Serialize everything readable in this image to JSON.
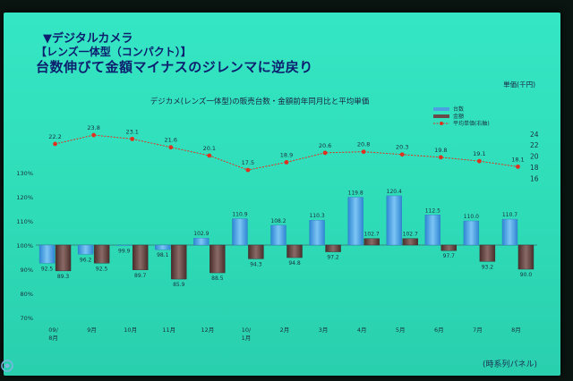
{
  "slide": {
    "heading": "▼デジタルカメラ",
    "subheading": "【レンズ一体型（コンパクト）】",
    "headline": "台数伸びて金額マイナスのジレンマに逆戻り",
    "footnote": "(時系列パネル)"
  },
  "chart_data": {
    "type": "bar+line",
    "title": "デジカメ(レンズ一体型)の販売台数・金額前年同月比と平均単価",
    "right_axis_unit": "単価(千円)",
    "categories": [
      "09/8月",
      "9月",
      "10月",
      "11月",
      "12月",
      "10/1月",
      "2月",
      "3月",
      "4月",
      "5月",
      "6月",
      "7月",
      "8月"
    ],
    "category_lines": [
      [
        "09/",
        "8月"
      ],
      [
        "9月"
      ],
      [
        "10月"
      ],
      [
        "11月"
      ],
      [
        "12月"
      ],
      [
        "10/",
        "1月"
      ],
      [
        "2月"
      ],
      [
        "3月"
      ],
      [
        "4月"
      ],
      [
        "5月"
      ],
      [
        "6月"
      ],
      [
        "7月"
      ],
      [
        "8月"
      ]
    ],
    "series": [
      {
        "name": "台数",
        "kind": "bar",
        "axis": "left",
        "color": "#4aa0e0",
        "values": [
          92.5,
          96.2,
          99.9,
          98.1,
          102.9,
          110.9,
          108.2,
          110.3,
          119.8,
          120.4,
          112.5,
          110.0,
          110.7
        ]
      },
      {
        "name": "金額",
        "kind": "bar",
        "axis": "left",
        "color": "#6a4a48",
        "values": [
          89.3,
          92.5,
          89.7,
          85.9,
          88.5,
          94.3,
          94.8,
          97.2,
          102.7,
          102.7,
          97.7,
          93.2,
          90.0
        ]
      },
      {
        "name": "平均単価(右軸)",
        "kind": "line",
        "axis": "right",
        "color": "#e03020",
        "values": [
          22.2,
          23.8,
          23.1,
          21.6,
          20.1,
          17.5,
          18.9,
          20.6,
          20.8,
          20.3,
          19.8,
          19.1,
          18.1
        ]
      }
    ],
    "left_axis": {
      "ticks": [
        70,
        80,
        90,
        100,
        110,
        120,
        130
      ],
      "labels": [
        "70%",
        "80%",
        "90%",
        "100%",
        "110%",
        "120%",
        "130%"
      ],
      "baseline": 100
    },
    "right_axis": {
      "ticks": [
        16,
        18,
        20,
        22,
        24
      ]
    },
    "grid": false,
    "legend": "top-right"
  }
}
